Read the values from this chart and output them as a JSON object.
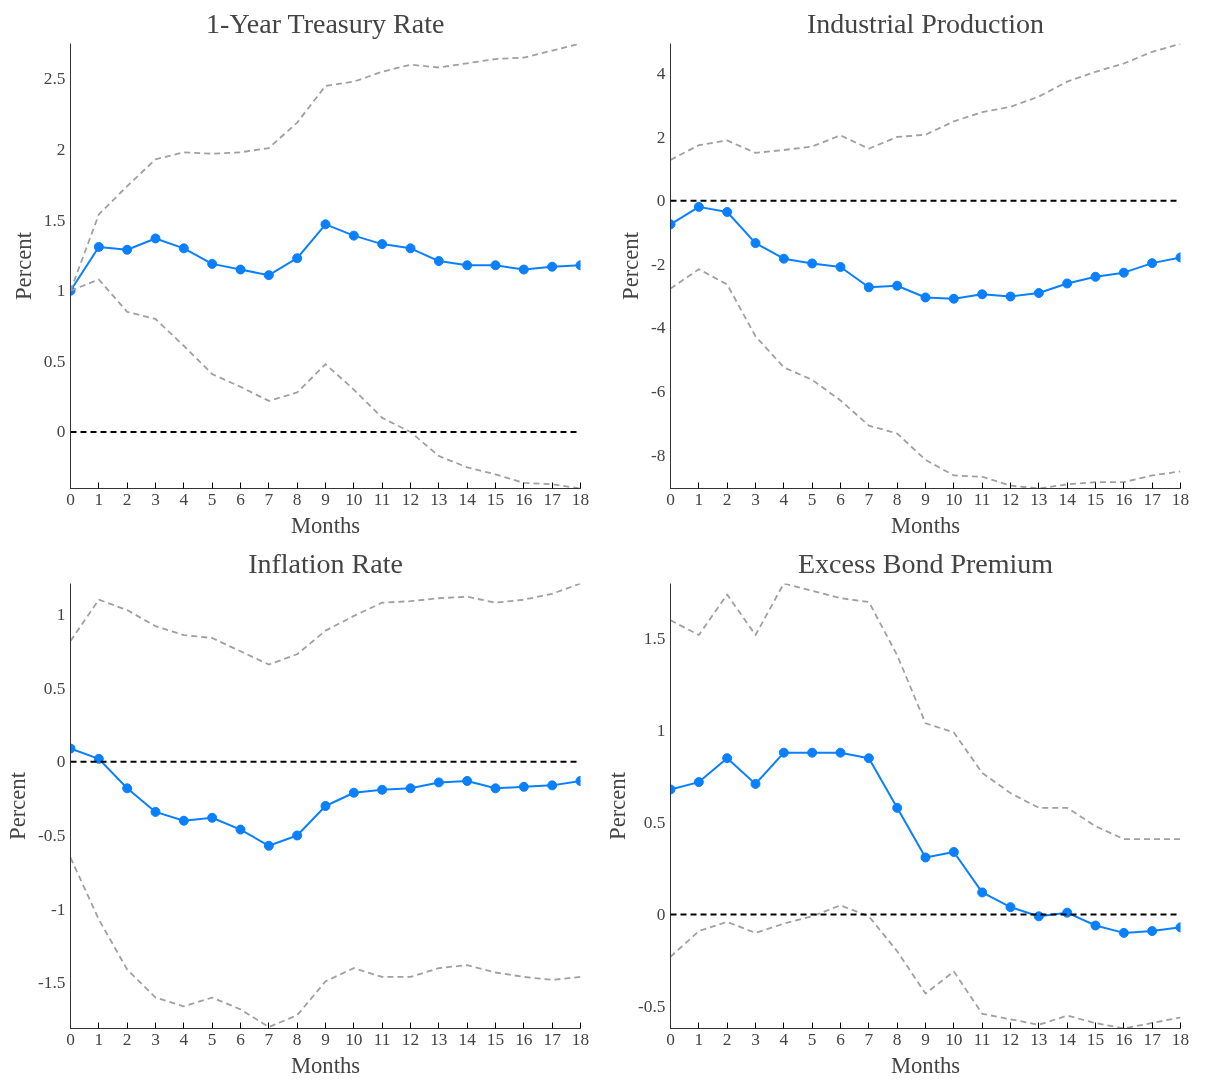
{
  "chart_data": [
    {
      "type": "line",
      "title": "1-Year Treasury Rate",
      "xlabel": "Months",
      "ylabel": "Percent",
      "x": [
        0,
        1,
        2,
        3,
        4,
        5,
        6,
        7,
        8,
        9,
        10,
        11,
        12,
        13,
        14,
        15,
        16,
        17,
        18
      ],
      "xlim": [
        0,
        18
      ],
      "xticks": [
        0,
        1,
        2,
        3,
        4,
        5,
        6,
        7,
        8,
        9,
        10,
        11,
        12,
        13,
        14,
        15,
        16,
        17,
        18
      ],
      "ylim": [
        -0.4,
        2.75
      ],
      "yticks": [
        0,
        0.5,
        1,
        1.5,
        2,
        2.5
      ],
      "grid": false,
      "series": [
        {
          "color": "#0a80ff",
          "marker": "circle",
          "line_style": "solid",
          "values": [
            1.0,
            1.31,
            1.29,
            1.37,
            1.3,
            1.19,
            1.15,
            1.11,
            1.23,
            1.47,
            1.39,
            1.33,
            1.3,
            1.21,
            1.18,
            1.18,
            1.15,
            1.17,
            1.18
          ]
        },
        {
          "color": "#a0a0a0",
          "marker": "none",
          "line_style": "dashed",
          "values": [
            1.0,
            1.54,
            1.74,
            1.93,
            1.98,
            1.97,
            1.98,
            2.01,
            2.19,
            2.45,
            2.48,
            2.55,
            2.6,
            2.58,
            2.61,
            2.64,
            2.65,
            2.7,
            2.75
          ]
        },
        {
          "color": "#a0a0a0",
          "marker": "none",
          "line_style": "dashed",
          "values": [
            1.0,
            1.08,
            0.85,
            0.8,
            0.61,
            0.41,
            0.32,
            0.22,
            0.28,
            0.48,
            0.3,
            0.1,
            0.0,
            -0.17,
            -0.25,
            -0.3,
            -0.36,
            -0.37,
            -0.4
          ]
        }
      ],
      "ref_lines": [
        {
          "axis": "y",
          "value": 0,
          "color": "#000000",
          "line_style": "dashed"
        }
      ]
    },
    {
      "type": "line",
      "title": "Industrial Production",
      "xlabel": "Months",
      "ylabel": "Percent",
      "x": [
        0,
        1,
        2,
        3,
        4,
        5,
        6,
        7,
        8,
        9,
        10,
        11,
        12,
        13,
        14,
        15,
        16,
        17,
        18
      ],
      "xlim": [
        0,
        18
      ],
      "xticks": [
        0,
        1,
        2,
        3,
        4,
        5,
        6,
        7,
        8,
        9,
        10,
        11,
        12,
        13,
        14,
        15,
        16,
        17,
        18
      ],
      "ylim": [
        -9.05,
        4.95
      ],
      "yticks": [
        -8,
        -6,
        -4,
        -2,
        0,
        2,
        4
      ],
      "grid": false,
      "series": [
        {
          "color": "#0a80ff",
          "marker": "circle",
          "line_style": "solid",
          "values": [
            -0.74,
            -0.19,
            -0.35,
            -1.33,
            -1.82,
            -1.97,
            -2.08,
            -2.72,
            -2.67,
            -3.04,
            -3.08,
            -2.94,
            -3.01,
            -2.9,
            -2.6,
            -2.39,
            -2.26,
            -1.96,
            -1.78
          ]
        },
        {
          "color": "#a0a0a0",
          "marker": "none",
          "line_style": "dashed",
          "values": [
            1.29,
            1.75,
            1.9,
            1.51,
            1.6,
            1.71,
            2.06,
            1.64,
            2.01,
            2.08,
            2.5,
            2.79,
            2.96,
            3.28,
            3.75,
            4.06,
            4.32,
            4.69,
            4.94
          ]
        },
        {
          "color": "#a0a0a0",
          "marker": "none",
          "line_style": "dashed",
          "values": [
            -2.76,
            -2.15,
            -2.63,
            -4.26,
            -5.24,
            -5.63,
            -6.28,
            -7.07,
            -7.32,
            -8.15,
            -8.64,
            -8.68,
            -8.96,
            -9.05,
            -8.92,
            -8.85,
            -8.85,
            -8.64,
            -8.51
          ]
        }
      ],
      "ref_lines": [
        {
          "axis": "y",
          "value": 0,
          "color": "#000000",
          "line_style": "dashed"
        }
      ]
    },
    {
      "type": "line",
      "title": "Inflation Rate",
      "xlabel": "Months",
      "ylabel": "Percent",
      "x": [
        0,
        1,
        2,
        3,
        4,
        5,
        6,
        7,
        8,
        9,
        10,
        11,
        12,
        13,
        14,
        15,
        16,
        17,
        18
      ],
      "xlim": [
        0,
        18
      ],
      "xticks": [
        0,
        1,
        2,
        3,
        4,
        5,
        6,
        7,
        8,
        9,
        10,
        11,
        12,
        13,
        14,
        15,
        16,
        17,
        18
      ],
      "ylim": [
        -1.81,
        1.21
      ],
      "yticks": [
        -1.5,
        -1,
        -0.5,
        0,
        0.5,
        1
      ],
      "grid": false,
      "series": [
        {
          "color": "#0a80ff",
          "marker": "circle",
          "line_style": "solid",
          "values": [
            0.09,
            0.02,
            -0.18,
            -0.34,
            -0.4,
            -0.38,
            -0.46,
            -0.57,
            -0.5,
            -0.3,
            -0.21,
            -0.19,
            -0.18,
            -0.14,
            -0.13,
            -0.18,
            -0.17,
            -0.16,
            -0.13
          ]
        },
        {
          "color": "#a0a0a0",
          "marker": "none",
          "line_style": "dashed",
          "values": [
            0.82,
            1.1,
            1.03,
            0.92,
            0.86,
            0.84,
            0.75,
            0.66,
            0.73,
            0.89,
            0.99,
            1.08,
            1.09,
            1.11,
            1.12,
            1.08,
            1.1,
            1.14,
            1.21
          ]
        },
        {
          "color": "#a0a0a0",
          "marker": "none",
          "line_style": "dashed",
          "values": [
            -0.65,
            -1.07,
            -1.41,
            -1.6,
            -1.66,
            -1.6,
            -1.68,
            -1.8,
            -1.72,
            -1.49,
            -1.4,
            -1.46,
            -1.46,
            -1.4,
            -1.38,
            -1.43,
            -1.46,
            -1.48,
            -1.46
          ]
        }
      ],
      "ref_lines": [
        {
          "axis": "y",
          "value": 0,
          "color": "#000000",
          "line_style": "dashed"
        }
      ]
    },
    {
      "type": "line",
      "title": "Excess Bond Premium",
      "xlabel": "Months",
      "ylabel": "Percent",
      "x": [
        0,
        1,
        2,
        3,
        4,
        5,
        6,
        7,
        8,
        9,
        10,
        11,
        12,
        13,
        14,
        15,
        16,
        17,
        18
      ],
      "xlim": [
        0,
        18
      ],
      "xticks": [
        0,
        1,
        2,
        3,
        4,
        5,
        6,
        7,
        8,
        9,
        10,
        11,
        12,
        13,
        14,
        15,
        16,
        17,
        18
      ],
      "ylim": [
        -0.62,
        1.8
      ],
      "yticks": [
        -0.5,
        0,
        0.5,
        1,
        1.5
      ],
      "grid": false,
      "series": [
        {
          "color": "#0a80ff",
          "marker": "circle",
          "line_style": "solid",
          "values": [
            0.68,
            0.72,
            0.85,
            0.71,
            0.88,
            0.88,
            0.88,
            0.85,
            0.58,
            0.31,
            0.34,
            0.12,
            0.04,
            -0.01,
            0.01,
            -0.06,
            -0.1,
            -0.09,
            -0.07
          ]
        },
        {
          "color": "#a0a0a0",
          "marker": "none",
          "line_style": "dashed",
          "values": [
            1.6,
            1.52,
            1.74,
            1.52,
            1.8,
            1.76,
            1.72,
            1.7,
            1.41,
            1.04,
            0.99,
            0.77,
            0.66,
            0.58,
            0.58,
            0.48,
            0.41,
            0.41,
            0.41
          ]
        },
        {
          "color": "#a0a0a0",
          "marker": "none",
          "line_style": "dashed",
          "values": [
            -0.23,
            -0.09,
            -0.04,
            -0.1,
            -0.05,
            -0.01,
            0.05,
            -0.01,
            -0.2,
            -0.43,
            -0.31,
            -0.54,
            -0.57,
            -0.6,
            -0.55,
            -0.59,
            -0.62,
            -0.59,
            -0.56
          ]
        }
      ],
      "ref_lines": [
        {
          "axis": "y",
          "value": 0,
          "color": "#000000",
          "line_style": "dashed"
        }
      ]
    }
  ]
}
